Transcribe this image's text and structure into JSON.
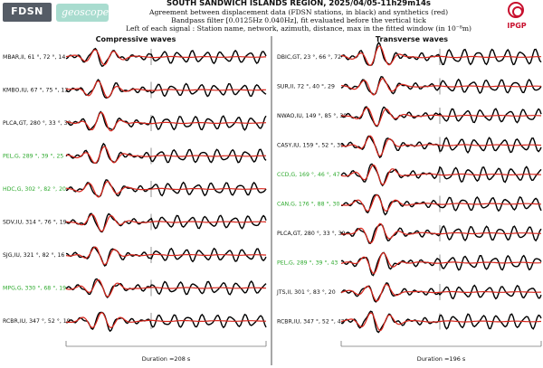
{
  "header": {
    "logo_left": "FDSN",
    "logo_middle": "geoscope",
    "logo_right": "IPGP",
    "title": "SOUTH SANDWICH ISLANDS REGION, 2025/04/05-11h29m14s",
    "subtitle_lines": [
      "Agreement between displacement data (FDSN stations, in black) and synthetics (red)",
      "Bandpass filter [0.0125Hz 0.040Hz], fit evaluated before the vertical tick",
      "Left of each signal : Station name, network, azimuth, distance, max in the fitted window (in 10⁻⁸m)"
    ]
  },
  "colors": {
    "data": "#000000",
    "synthetic": "#d9261c",
    "label_default": "#111111",
    "label_highlight": "#2eaa2e",
    "axis": "#777777"
  },
  "chart_data": {
    "type": "line",
    "panels": [
      {
        "title": "Compressive waves",
        "duration_label": "Duration =208 s",
        "traces": [
          {
            "label": "MBAR,II, 61 °, 72 °, 14",
            "station": "MBAR",
            "network": "II",
            "azimuth": 61,
            "distance": 72,
            "max": 14,
            "highlight": false
          },
          {
            "label": "KMBO,IU, 67 °, 75 °, 13",
            "station": "KMBO",
            "network": "IU",
            "azimuth": 67,
            "distance": 75,
            "max": 13,
            "highlight": false
          },
          {
            "label": "PLCA,GT, 280 °, 33 °, 30",
            "station": "PLCA",
            "network": "GT",
            "azimuth": 280,
            "distance": 33,
            "max": 30,
            "highlight": false
          },
          {
            "label": "PEL,G, 289 °, 39 °, 25",
            "station": "PEL",
            "network": "G",
            "azimuth": 289,
            "distance": 39,
            "max": 25,
            "highlight": true
          },
          {
            "label": "HDC,G, 302 °, 82 °, 20",
            "station": "HDC",
            "network": "G",
            "azimuth": 302,
            "distance": 82,
            "max": 20,
            "highlight": true
          },
          {
            "label": "SDV,IU, 314 °, 76 °, 19",
            "station": "SDV",
            "network": "IU",
            "azimuth": 314,
            "distance": 76,
            "max": 19,
            "highlight": false
          },
          {
            "label": "SJG,IU, 321 °, 82 °, 16",
            "station": "SJG",
            "network": "IU",
            "azimuth": 321,
            "distance": 82,
            "max": 16,
            "highlight": false
          },
          {
            "label": "MPG,G, 330 °, 68 °, 19",
            "station": "MPG",
            "network": "G",
            "azimuth": 330,
            "distance": 68,
            "max": 19,
            "highlight": true
          },
          {
            "label": "RCBR,IU, 347 °, 52 °, 19",
            "station": "RCBR",
            "network": "IU",
            "azimuth": 347,
            "distance": 52,
            "max": 19,
            "highlight": false
          }
        ]
      },
      {
        "title": "Transverse waves",
        "duration_label": "Duration =196 s",
        "traces": [
          {
            "label": "DBIC,GT, 23 °, 66 °, 72",
            "station": "DBIC",
            "network": "GT",
            "azimuth": 23,
            "distance": 66,
            "max": 72,
            "highlight": false
          },
          {
            "label": "SUR,II, 72 °, 40 °, 29",
            "station": "SUR",
            "network": "II",
            "azimuth": 72,
            "distance": 40,
            "max": 29,
            "highlight": false
          },
          {
            "label": "NWAO,IU, 149 °, 85 °, 30",
            "station": "NWAO",
            "network": "IU",
            "azimuth": 149,
            "distance": 85,
            "max": 30,
            "highlight": false
          },
          {
            "label": "CASY,IU, 159 °, 52 °, 39",
            "station": "CASY",
            "network": "IU",
            "azimuth": 159,
            "distance": 52,
            "max": 39,
            "highlight": false
          },
          {
            "label": "CCD,G, 169 °, 46 °, 47",
            "station": "CCD",
            "network": "G",
            "azimuth": 169,
            "distance": 46,
            "max": 47,
            "highlight": true
          },
          {
            "label": "CAN,G, 176 °, 88 °, 30",
            "station": "CAN",
            "network": "G",
            "azimuth": 176,
            "distance": 88,
            "max": 30,
            "highlight": true
          },
          {
            "label": "PLCA,GT, 280 °, 33 °, 39",
            "station": "PLCA",
            "network": "GT",
            "azimuth": 280,
            "distance": 33,
            "max": 39,
            "highlight": false
          },
          {
            "label": "PEL,G, 289 °, 39 °, 43",
            "station": "PEL",
            "network": "G",
            "azimuth": 289,
            "distance": 39,
            "max": 43,
            "highlight": true
          },
          {
            "label": "JTS,II, 301 °, 83 °, 20",
            "station": "JTS",
            "network": "II",
            "azimuth": 301,
            "distance": 83,
            "max": 20,
            "highlight": false
          },
          {
            "label": "RCBR,IU, 347 °, 52 °, 42",
            "station": "RCBR",
            "network": "IU",
            "azimuth": 347,
            "distance": 52,
            "max": 42,
            "highlight": false
          }
        ]
      }
    ]
  }
}
